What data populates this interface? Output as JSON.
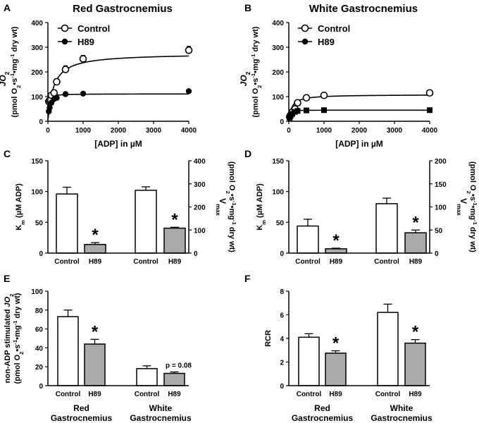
{
  "chart_data": [
    {
      "id": "A",
      "panel_letter": "A",
      "type": "line",
      "title": "Red Gastrocnemius",
      "xlabel": "[ADP] in µM",
      "ylabel_sym": "JO",
      "ylabel_sub": "2",
      "ylabel_unit_parts": [
        "(pmol O",
        "2",
        "•s",
        "-1",
        "•mg",
        "-1",
        " dry wt)"
      ],
      "xlim": [
        0,
        4000
      ],
      "ylim": [
        0,
        400
      ],
      "xticks": [
        0,
        1000,
        2000,
        3000,
        4000
      ],
      "yticks": [
        0,
        100,
        200,
        300,
        400
      ],
      "legend": [
        "Control",
        "H89"
      ],
      "series": [
        {
          "name": "Control",
          "marker": "open-circle",
          "points": [
            [
              25,
              80
            ],
            [
              50,
              85
            ],
            [
              100,
              105
            ],
            [
              175,
              115
            ],
            [
              250,
              160
            ],
            [
              500,
              210
            ],
            [
              1000,
              253
            ],
            [
              4000,
              288
            ]
          ],
          "errors": [
            8,
            8,
            10,
            12,
            12,
            15,
            14,
            16
          ],
          "fit": {
            "vmax": 275,
            "km": 160
          }
        },
        {
          "name": "H89",
          "marker": "filled-circle",
          "points": [
            [
              25,
              40
            ],
            [
              50,
              55
            ],
            [
              100,
              75
            ],
            [
              175,
              90
            ],
            [
              250,
              95
            ],
            [
              500,
              110
            ],
            [
              1000,
              112
            ],
            [
              4000,
              122
            ]
          ],
          "errors": [
            3,
            3,
            4,
            4,
            4,
            5,
            5,
            5
          ],
          "fit": {
            "vmax": 111,
            "km": 14
          }
        }
      ]
    },
    {
      "id": "B",
      "panel_letter": "B",
      "type": "line",
      "title": "White Gastrocnemius",
      "xlabel": "[ADP] in µM",
      "ylabel_sym": "JO",
      "ylabel_sub": "2",
      "ylabel_unit_parts": [
        "(pmol O",
        "2",
        "•s",
        "-1",
        "•mg",
        "-1",
        " dry wt)"
      ],
      "xlim": [
        0,
        4000
      ],
      "ylim": [
        0,
        400
      ],
      "xticks": [
        0,
        1000,
        2000,
        3000,
        4000
      ],
      "yticks": [
        0,
        100,
        200,
        300,
        400
      ],
      "legend": [
        "Control",
        "H89"
      ],
      "series": [
        {
          "name": "Control",
          "marker": "open-circle",
          "points": [
            [
              25,
              18
            ],
            [
              50,
              25
            ],
            [
              100,
              38
            ],
            [
              175,
              50
            ],
            [
              250,
              75
            ],
            [
              500,
              95
            ],
            [
              1000,
              105
            ],
            [
              4000,
              115
            ]
          ],
          "errors": [
            4,
            4,
            5,
            6,
            7,
            8,
            8,
            9
          ],
          "fit": {
            "vmax": 108,
            "km": 80
          }
        },
        {
          "name": "H89",
          "marker": "filled-square",
          "points": [
            [
              25,
              14
            ],
            [
              50,
              22
            ],
            [
              100,
              30
            ],
            [
              175,
              38
            ],
            [
              250,
              42
            ],
            [
              500,
              44
            ],
            [
              1000,
              45
            ],
            [
              4000,
              45
            ]
          ],
          "errors": [
            2,
            2,
            3,
            3,
            3,
            3,
            3,
            3
          ],
          "fit": {
            "vmax": 45,
            "km": 7
          }
        }
      ]
    },
    {
      "id": "C",
      "panel_letter": "C",
      "type": "bar",
      "ylabel_left": "K",
      "ylabel_left_sub": "m",
      "ylabel_left_rest": " (µM ADP)",
      "ylim_left": [
        0,
        150
      ],
      "yticks_left": [
        0,
        50,
        100,
        150
      ],
      "ylabel_right_sym": "V",
      "ylabel_right_sub": "max",
      "ylabel_right_unit_parts": [
        "(pmol O",
        "2",
        "•s",
        "-1",
        "•mg",
        "-1",
        " dry wt)"
      ],
      "ylim_right": [
        0,
        400
      ],
      "yticks_right": [
        0,
        100,
        200,
        300,
        400
      ],
      "bars": [
        {
          "label": "Control",
          "value": 96,
          "error": 11,
          "fill": "#ffffff",
          "axis": "left",
          "sig": ""
        },
        {
          "label": "H89",
          "value": 14,
          "error": 3,
          "fill": "#aaaaaa",
          "axis": "left",
          "sig": "*"
        },
        {
          "label": "Control",
          "value": 272,
          "error": 15,
          "fill": "#ffffff",
          "axis": "right",
          "sig": ""
        },
        {
          "label": "H89",
          "value": 108,
          "error": 4,
          "fill": "#aaaaaa",
          "axis": "right",
          "sig": "*"
        }
      ]
    },
    {
      "id": "D",
      "panel_letter": "D",
      "type": "bar",
      "ylabel_left": "K",
      "ylabel_left_sub": "m",
      "ylabel_left_rest": " (µM ADP)",
      "ylim_left": [
        0,
        150
      ],
      "yticks_left": [
        0,
        50,
        100,
        150
      ],
      "ylabel_right_sym": "V",
      "ylabel_right_sub": "max",
      "ylabel_right_unit_parts": [
        "(pmol O",
        "2",
        "•s",
        "-1",
        "•mg",
        "-1",
        " dry wt)"
      ],
      "ylim_right": [
        0,
        200
      ],
      "yticks_right": [
        0,
        50,
        100,
        150,
        200
      ],
      "bars": [
        {
          "label": "Control",
          "value": 44,
          "error": 11,
          "fill": "#ffffff",
          "axis": "left",
          "sig": ""
        },
        {
          "label": "H89",
          "value": 7,
          "error": 1,
          "fill": "#aaaaaa",
          "axis": "left",
          "sig": "*"
        },
        {
          "label": "Control",
          "value": 107,
          "error": 12,
          "fill": "#ffffff",
          "axis": "right",
          "sig": ""
        },
        {
          "label": "H89",
          "value": 44,
          "error": 6,
          "fill": "#aaaaaa",
          "axis": "right",
          "sig": "*"
        }
      ]
    },
    {
      "id": "E",
      "panel_letter": "E",
      "type": "bar",
      "ylabel_line1_a": "non-ADP stimulated ",
      "ylabel_line1_b": "JO",
      "ylabel_line1_sub": "2",
      "ylabel_unit_parts": [
        "(pmol O",
        "2",
        "•s",
        "-1",
        "•mg",
        "-1",
        " dry wt)"
      ],
      "ylim": [
        0,
        100
      ],
      "yticks": [
        0,
        20,
        40,
        60,
        80,
        100
      ],
      "groups": [
        "Red Gastrocnemius",
        "White Gastrocnemius"
      ],
      "bars": [
        {
          "label": "Control",
          "value": 73,
          "error": 7,
          "fill": "#ffffff",
          "sig": ""
        },
        {
          "label": "H89",
          "value": 44,
          "error": 5,
          "fill": "#aaaaaa",
          "sig": "*"
        },
        {
          "label": "Control",
          "value": 18,
          "error": 3,
          "fill": "#ffffff",
          "sig": ""
        },
        {
          "label": "H89",
          "value": 13,
          "error": 1.5,
          "fill": "#aaaaaa",
          "sig": "p = 0.08"
        }
      ]
    },
    {
      "id": "F",
      "panel_letter": "F",
      "type": "bar",
      "ylabel": "RCR",
      "ylim": [
        0,
        8
      ],
      "yticks": [
        0,
        2,
        4,
        6,
        8
      ],
      "groups": [
        "Red Gastrocnemius",
        "White Gastrocnemius"
      ],
      "bars": [
        {
          "label": "Control",
          "value": 4.1,
          "error": 0.3,
          "fill": "#ffffff",
          "sig": ""
        },
        {
          "label": "H89",
          "value": 2.75,
          "error": 0.2,
          "fill": "#aaaaaa",
          "sig": "*"
        },
        {
          "label": "Control",
          "value": 6.2,
          "error": 0.7,
          "fill": "#ffffff",
          "sig": ""
        },
        {
          "label": "H89",
          "value": 3.6,
          "error": 0.3,
          "fill": "#aaaaaa",
          "sig": "*"
        }
      ]
    }
  ]
}
